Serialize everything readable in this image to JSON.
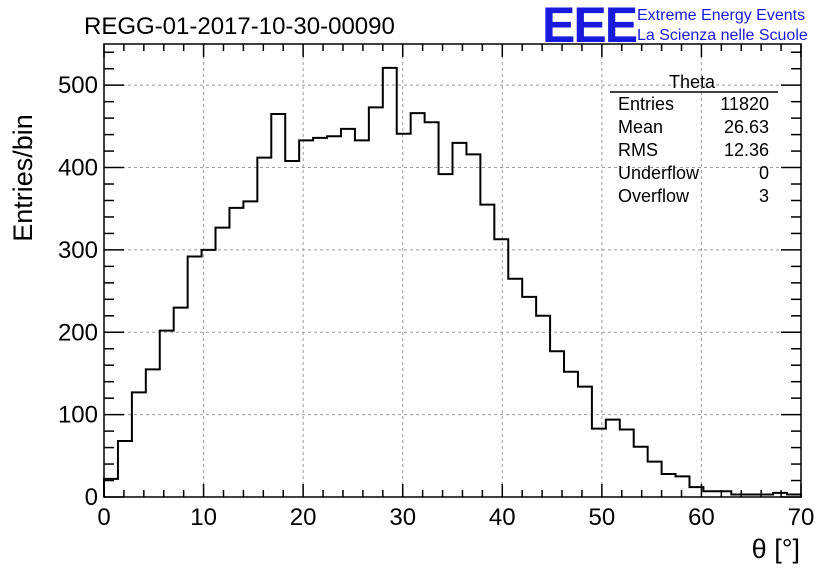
{
  "chart_data": {
    "type": "histogram",
    "title": "REGG-01-2017-10-30-00090",
    "xlabel": "θ [°]",
    "ylabel": "Entries/bin",
    "xlim": [
      0,
      70
    ],
    "ylim": [
      0,
      550
    ],
    "bin_width": 1.4,
    "x_ticks": [
      0,
      10,
      20,
      30,
      40,
      50,
      60,
      70
    ],
    "y_ticks": [
      0,
      100,
      200,
      300,
      400,
      500
    ],
    "grid": true,
    "values": [
      22,
      68,
      127,
      155,
      202,
      230,
      292,
      300,
      327,
      351,
      359,
      412,
      465,
      408,
      433,
      436,
      438,
      447,
      433,
      473,
      521,
      441,
      466,
      455,
      392,
      430,
      416,
      355,
      313,
      265,
      243,
      220,
      177,
      152,
      134,
      83,
      94,
      82,
      61,
      43,
      28,
      25,
      12,
      7,
      7,
      3,
      3,
      3,
      5,
      3
    ],
    "stats_box": {
      "name": "Theta",
      "rows": [
        {
          "label": "Entries",
          "value": "11820"
        },
        {
          "label": "Mean",
          "value": "26.63"
        },
        {
          "label": "RMS",
          "value": "12.36"
        },
        {
          "label": "Underflow",
          "value": "0"
        },
        {
          "label": "Overflow",
          "value": "3"
        }
      ]
    },
    "logo": {
      "mark": "EEE",
      "line1": "Extreme Energy Events",
      "line2": "La Scienza nelle Scuole"
    }
  }
}
